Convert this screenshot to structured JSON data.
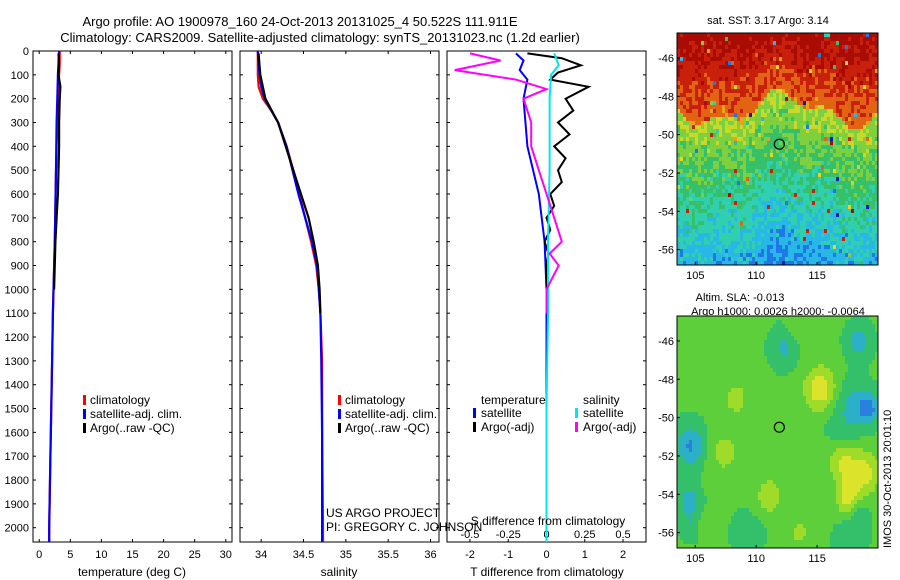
{
  "header": {
    "line1": "Argo profile: AO 1900978_160 24-Oct-2013 20131025_4 50.522S 111.911E",
    "line2": "Climatology: CARS2009. Satellite-adjusted climatology: synTS_20131023.nc (1.2d earlier)"
  },
  "colors": {
    "climatology": "#ff0000",
    "satellite": "#0000ff",
    "argo": "#000000",
    "salinity_sat": "#00e5ee",
    "salinity_argo": "#ff00ff"
  },
  "depth_ticks": [
    "0",
    "100",
    "200",
    "300",
    "400",
    "500",
    "600",
    "700",
    "800",
    "900",
    "1000",
    "1100",
    "1200",
    "1300",
    "1400",
    "1500",
    "1600",
    "1700",
    "1800",
    "1900",
    "2000"
  ],
  "credit": {
    "line1": "US ARGO PROJECT",
    "line2": "PI: GREGORY C. JOHNSON"
  },
  "chart_data": [
    {
      "type": "line",
      "id": "temperature",
      "xlabel": "temperature (deg C)",
      "ylabel": "depth",
      "xlim": [
        -1,
        31
      ],
      "ylim": [
        2060,
        0
      ],
      "xticks": [
        "0",
        "5",
        "10",
        "15",
        "20",
        "25",
        "30"
      ],
      "legend": [
        "climatology",
        "satellite-adj. clim.",
        "Argo(..raw -QC)"
      ],
      "series": [
        {
          "name": "climatology",
          "depth": [
            0,
            50,
            100,
            200,
            300,
            500,
            800,
            1100,
            1400,
            1700,
            2000,
            2060
          ],
          "values": [
            3.3,
            3.3,
            3.2,
            3.0,
            2.9,
            2.7,
            2.5,
            2.2,
            2.0,
            1.8,
            1.6,
            1.6
          ]
        },
        {
          "name": "satellite-adj. clim.",
          "depth": [
            0,
            50,
            100,
            200,
            300,
            500,
            800,
            1100,
            1400,
            1700,
            2000,
            2060
          ],
          "values": [
            3.2,
            3.1,
            3.0,
            2.9,
            2.8,
            2.7,
            2.5,
            2.2,
            2.0,
            1.8,
            1.6,
            1.6
          ]
        },
        {
          "name": "Argo(..raw -QC)",
          "depth": [
            10,
            60,
            100,
            150,
            200,
            300,
            400,
            500,
            600,
            700,
            800,
            1000
          ],
          "values": [
            3.1,
            3.2,
            3.1,
            3.4,
            3.3,
            3.2,
            3.2,
            3.1,
            3.0,
            2.8,
            2.6,
            2.4
          ]
        }
      ]
    },
    {
      "type": "line",
      "id": "salinity",
      "xlabel": "salinity",
      "ylabel": "depth",
      "xlim": [
        33.75,
        36.1
      ],
      "ylim": [
        2060,
        0
      ],
      "xticks": [
        "34",
        "34.5",
        "35",
        "35.5",
        "36"
      ],
      "legend": [
        "climatology",
        "satellite-adj. clim.",
        "Argo(..raw -QC)"
      ],
      "series": [
        {
          "name": "climatology",
          "depth": [
            0,
            100,
            150,
            200,
            250,
            300,
            400,
            500,
            600,
            700,
            800,
            900,
            1000,
            1100,
            1300,
            1600,
            2000,
            2060
          ],
          "values": [
            33.96,
            33.96,
            33.97,
            34.02,
            34.12,
            34.2,
            34.3,
            34.38,
            34.45,
            34.52,
            34.59,
            34.65,
            34.68,
            34.7,
            34.72,
            34.72,
            34.73,
            34.73
          ]
        },
        {
          "name": "satellite-adj. clim.",
          "depth": [
            0,
            100,
            150,
            200,
            250,
            300,
            400,
            500,
            600,
            700,
            800,
            900,
            1000,
            1100,
            1300,
            1600,
            2000,
            2060
          ],
          "values": [
            33.96,
            33.98,
            34.0,
            34.04,
            34.12,
            34.2,
            34.3,
            34.37,
            34.44,
            34.52,
            34.6,
            34.66,
            34.68,
            34.7,
            34.71,
            34.72,
            34.72,
            34.72
          ]
        },
        {
          "name": "Argo(..raw -QC)",
          "depth": [
            10,
            60,
            100,
            200,
            300,
            500,
            700,
            800,
            900,
            1000,
            1100
          ],
          "values": [
            33.97,
            33.98,
            33.99,
            34.05,
            34.2,
            34.38,
            34.56,
            34.62,
            34.67,
            34.69,
            34.7
          ]
        }
      ]
    },
    {
      "type": "line",
      "id": "difference",
      "xlabel": "T difference from climatology",
      "xlabel_top": "S difference from climatology",
      "xlim": [
        -2.6,
        2.6
      ],
      "ylim": [
        2060,
        0
      ],
      "xticks": [
        "-2",
        "-1",
        "0",
        "1",
        "2"
      ],
      "xticks_s": [
        "-0.5",
        "-0.25",
        "0",
        "0.25",
        "0.5"
      ],
      "legend_group_t": "temperature",
      "legend_group_s": "salinity",
      "legend": [
        "satellite",
        "Argo(-adj)",
        "satellite",
        "Argo(-adj)"
      ],
      "series": [
        {
          "name": "T satellite",
          "depth": [
            10,
            40,
            80,
            120,
            200,
            400,
            600,
            800,
            1000,
            1400,
            2060
          ],
          "values": [
            -0.8,
            -0.6,
            -0.7,
            -0.5,
            -0.6,
            -0.5,
            -0.2,
            -0.05,
            0,
            0,
            0
          ]
        },
        {
          "name": "T Argo(-adj)",
          "depth": [
            10,
            30,
            60,
            90,
            120,
            150,
            200,
            250,
            300,
            350,
            400,
            450,
            500,
            550,
            600,
            650,
            700,
            750,
            800,
            850,
            900,
            1000
          ],
          "values": [
            -0.5,
            0.4,
            0.9,
            0.3,
            0.1,
            1.1,
            0.5,
            0.7,
            0.3,
            0.6,
            0.2,
            0.5,
            0.3,
            0.4,
            0.1,
            0.2,
            0.0,
            0.1,
            -0.05,
            0.05,
            0.0,
            0.0
          ]
        },
        {
          "name": "S satellite",
          "depth": [
            10,
            60,
            100,
            200,
            300,
            500,
            800,
            1100,
            1500,
            2060
          ],
          "values": [
            0.05,
            0.08,
            0.03,
            0.02,
            0.02,
            0.02,
            0.01,
            0.01,
            0.0,
            0.0
          ]
        },
        {
          "name": "S Argo(-adj)",
          "depth": [
            10,
            40,
            80,
            120,
            160,
            200,
            300,
            400,
            500,
            600,
            700,
            800,
            850,
            900,
            1000,
            1100
          ],
          "values": [
            -0.5,
            -0.3,
            -0.6,
            -0.2,
            0.0,
            -0.15,
            -0.1,
            -0.1,
            -0.05,
            0.0,
            0.05,
            0.1,
            0.02,
            0.08,
            0.0,
            0.0
          ]
        }
      ]
    },
    {
      "type": "heatmap",
      "id": "sst_map",
      "title": "sat. SST: 3.17  Argo: 3.14",
      "xlim": [
        103.5,
        120
      ],
      "ylim": [
        -56.8,
        -44.7
      ],
      "xticks": [
        "105",
        "110",
        "115"
      ],
      "yticks": [
        "-46",
        "-48",
        "-50",
        "-52",
        "-54",
        "-56"
      ],
      "marker": {
        "lon": 111.9,
        "lat": -50.5
      }
    },
    {
      "type": "heatmap",
      "id": "sla_map",
      "title_line1": "Altim. SLA: -0.013",
      "title_line2": "Argo h1000: 0.0026 h2000: -0.0064",
      "xlim": [
        103.5,
        120
      ],
      "ylim": [
        -56.8,
        -44.7
      ],
      "xticks": [
        "105",
        "110",
        "115"
      ],
      "yticks": [
        "-46",
        "-48",
        "-50",
        "-52",
        "-54",
        "-56"
      ],
      "marker": {
        "lon": 111.9,
        "lat": -50.5
      },
      "side_label": "IMOS 30-Oct-2013 20:01:10"
    }
  ]
}
